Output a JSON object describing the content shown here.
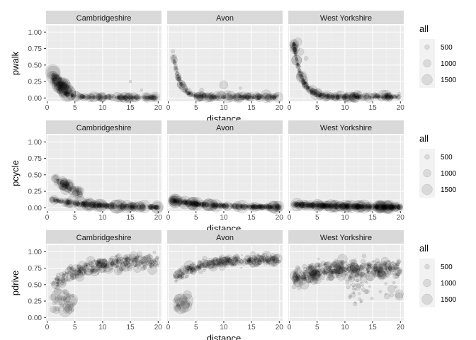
{
  "chart_data": [
    {
      "type": "scatter",
      "ylabel": "pwalk",
      "xlabel": "distance",
      "xlim": [
        0,
        20
      ],
      "ylim": [
        0,
        1.0
      ],
      "x_ticks": [
        "0",
        "5",
        "10",
        "15",
        "20"
      ],
      "y_ticks": [
        "0.00",
        "0.25",
        "0.50",
        "0.75",
        "1.00"
      ],
      "facets": [
        {
          "label": "Cambridgeshire",
          "pattern": "walk_cambs"
        },
        {
          "label": "Avon",
          "pattern": "walk_avon"
        },
        {
          "label": "West Yorkshire",
          "pattern": "walk_wy"
        }
      ],
      "legend": {
        "title": "all",
        "sizes": [
          "500",
          "1000",
          "1500"
        ],
        "placement": "right"
      },
      "grid": true
    },
    {
      "type": "scatter",
      "ylabel": "pcycle",
      "xlabel": "distance",
      "xlim": [
        0,
        20
      ],
      "ylim": [
        0,
        1.0
      ],
      "x_ticks": [
        "0",
        "5",
        "10",
        "15",
        "20"
      ],
      "y_ticks": [
        "0.00",
        "0.25",
        "0.50",
        "0.75",
        "1.00"
      ],
      "facets": [
        {
          "label": "Cambridgeshire",
          "pattern": "cycle_cambs"
        },
        {
          "label": "Avon",
          "pattern": "cycle_avon"
        },
        {
          "label": "West Yorkshire",
          "pattern": "cycle_wy"
        }
      ],
      "legend": {
        "title": "all",
        "sizes": [
          "500",
          "1000",
          "1500"
        ],
        "placement": "right"
      },
      "grid": true
    },
    {
      "type": "scatter",
      "ylabel": "pdrive",
      "xlabel": "distance",
      "xlim": [
        0,
        20
      ],
      "ylim": [
        0,
        1.0
      ],
      "x_ticks": [
        "0",
        "5",
        "10",
        "15",
        "20"
      ],
      "y_ticks": [
        "0.00",
        "0.25",
        "0.50",
        "0.75",
        "1.00"
      ],
      "facets": [
        {
          "label": "Cambridgeshire",
          "pattern": "drive_cambs"
        },
        {
          "label": "Avon",
          "pattern": "drive_avon"
        },
        {
          "label": "West Yorkshire",
          "pattern": "drive_wy"
        }
      ],
      "legend": {
        "title": "all",
        "sizes": [
          "500",
          "1000",
          "1500"
        ],
        "placement": "right"
      },
      "grid": true
    }
  ],
  "colors": {
    "panel": "#ebebeb",
    "strip": "#d9d9d9",
    "grid_major": "#ffffff",
    "point_fill": "#000000",
    "legend_key": "#f2f2f2"
  }
}
